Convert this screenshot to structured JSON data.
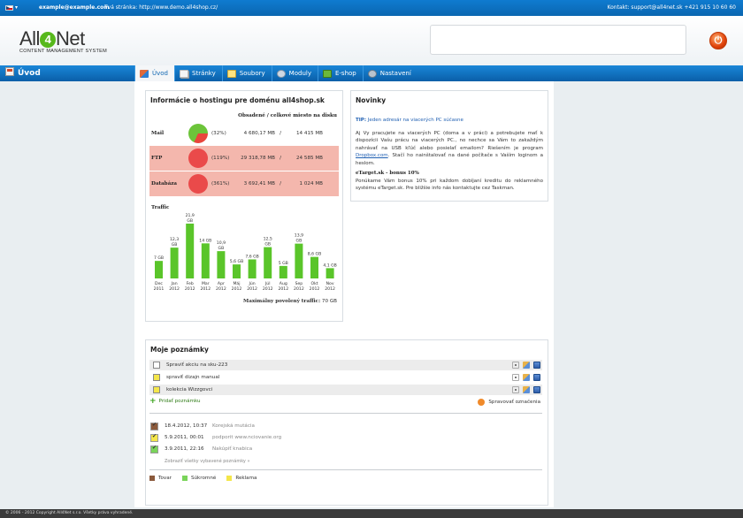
{
  "topbar": {
    "email": "example@example.com",
    "site": "Tvá stránka: http://www.demo.all4shop.cz/",
    "contact": "Kontakt: support@all4net.sk +421 915 10 60 60"
  },
  "logo": {
    "name_a": "All",
    "name_4": "4",
    "name_b": "Net",
    "tagline": "CONTENT MANAGEMENT SYSTEM"
  },
  "nav": {
    "page_title": "Úvod",
    "tabs": [
      {
        "label": "Úvod",
        "icon": "home-icon"
      },
      {
        "label": "Stránky",
        "icon": "pages-icon"
      },
      {
        "label": "Soubory",
        "icon": "files-icon"
      },
      {
        "label": "Moduly",
        "icon": "modules-icon"
      },
      {
        "label": "E-shop",
        "icon": "shop-icon"
      },
      {
        "label": "Nastavení",
        "icon": "settings-icon"
      }
    ]
  },
  "hosting": {
    "title": "Informácie o hostingu pre doménu all4shop.sk",
    "header": "Obsadené / celkové miesto na disku",
    "rows": [
      {
        "label": "Mail",
        "pct": "(32%)",
        "used": "4 680,17 MB",
        "total": "14 415 MB",
        "fraction": 0.32,
        "alert": false
      },
      {
        "label": "FTP",
        "pct": "(119%)",
        "used": "29 318,78 MB",
        "total": "24 585 MB",
        "fraction": 1.19,
        "alert": true
      },
      {
        "label": "Databáza",
        "pct": "(361%)",
        "used": "3 692,41 MB",
        "total": "1 024 MB",
        "fraction": 3.61,
        "alert": true
      }
    ],
    "traffic_label": "Traffic",
    "max_traffic_label": "Maximálny povolený traffic:",
    "max_traffic_value": "70 GB"
  },
  "chart_data": {
    "type": "bar",
    "categories": [
      "Dec 2011",
      "Jan 2012",
      "Feb 2012",
      "Mar 2012",
      "Apr 2012",
      "Máj 2012",
      "Jún 2012",
      "Júl 2012",
      "Aug 2012",
      "Sep 2012",
      "Okt 2012",
      "Nov 2012"
    ],
    "category_lines": [
      [
        "Dec",
        "2011"
      ],
      [
        "Jan",
        "2012"
      ],
      [
        "Feb",
        "2012"
      ],
      [
        "Mar",
        "2012"
      ],
      [
        "Apr",
        "2012"
      ],
      [
        "Máj",
        "2012"
      ],
      [
        "Jún",
        "2012"
      ],
      [
        "Júl",
        "2012"
      ],
      [
        "Aug",
        "2012"
      ],
      [
        "Sep",
        "2012"
      ],
      [
        "Okt",
        "2012"
      ],
      [
        "Nov",
        "2012"
      ]
    ],
    "values": [
      7,
      12.3,
      21.9,
      14,
      10.9,
      5.6,
      7.6,
      12.5,
      5,
      13.9,
      8.6,
      4.1
    ],
    "data_labels": [
      [
        "7 GB"
      ],
      [
        "12,3",
        "GB"
      ],
      [
        "21,9",
        "GB"
      ],
      [
        "14 GB"
      ],
      [
        "10,9",
        "GB"
      ],
      [
        "5,6 GB"
      ],
      [
        "7,6 GB"
      ],
      [
        "12,5",
        "GB"
      ],
      [
        "5 GB"
      ],
      [
        "13,9",
        "GB"
      ],
      [
        "8,6 GB"
      ],
      [
        "4,1 GB"
      ]
    ],
    "ylim": [
      0,
      24
    ],
    "bar_color": "#5ac52a"
  },
  "news": {
    "title": "Novinky",
    "tip_label": "TIP:",
    "tip_text": "Jeden adresár na viacerých PC súčasne",
    "para1_before": "Aj Vy pracujete na viacerých PC (doma a v práci) a potrebujete mať k dispozícii Vašu prácu na viacerých PC., no nechce sa Vám to zakaždým nahrávať na USB kľúč alebo posielať emailom? Riešením je program",
    "para1_link": "Dropbox.com",
    "para1_after": ". Stačí ho nainštalovať na dané počítače s Vaším loginom a heslom.",
    "etarget_title": "eTarget.sk - bonus 10%",
    "etarget_text": "Ponúkame Vám bonus 10% pri každom dobíjaní kreditu do reklamného systému eTarget.sk. Pre bližšie info nás kontaktujte cez Taskman."
  },
  "notes": {
    "title": "Moje poznámky",
    "items": [
      {
        "text": "Spraviť akciu na sku-223",
        "color": "#ffffff"
      },
      {
        "text": "spraviť dizajn manual",
        "color": "#f4e64a"
      },
      {
        "text": "kolekcia Wizzgovci",
        "color": "#f4e64a"
      }
    ],
    "add_label": "Pridať poznámku",
    "manage_label": "Spravovať označenia",
    "history": [
      {
        "date": "18.4.2012, 10:37",
        "text": "Korejská mutácia",
        "color": "#8b5a3c"
      },
      {
        "date": "5.9.2011, 00:01",
        "text": "podporit www.nciovanie.org",
        "color": "#f4e64a"
      },
      {
        "date": "3.9.2011, 22:16",
        "text": "Nakúpiť knabica",
        "color": "#7ad45a"
      }
    ],
    "show_all": "Zobraziť všetky vybavené poznámky »",
    "legend": [
      {
        "label": "Tovar",
        "color": "#8b5a3c"
      },
      {
        "label": "Súkromné",
        "color": "#7ad45a"
      },
      {
        "label": "Reklama",
        "color": "#f4e64a"
      }
    ]
  },
  "footer": {
    "text": "© 2006 - 2012 Copyright All4Net s.r.o. Všetky práva vyhradené."
  }
}
